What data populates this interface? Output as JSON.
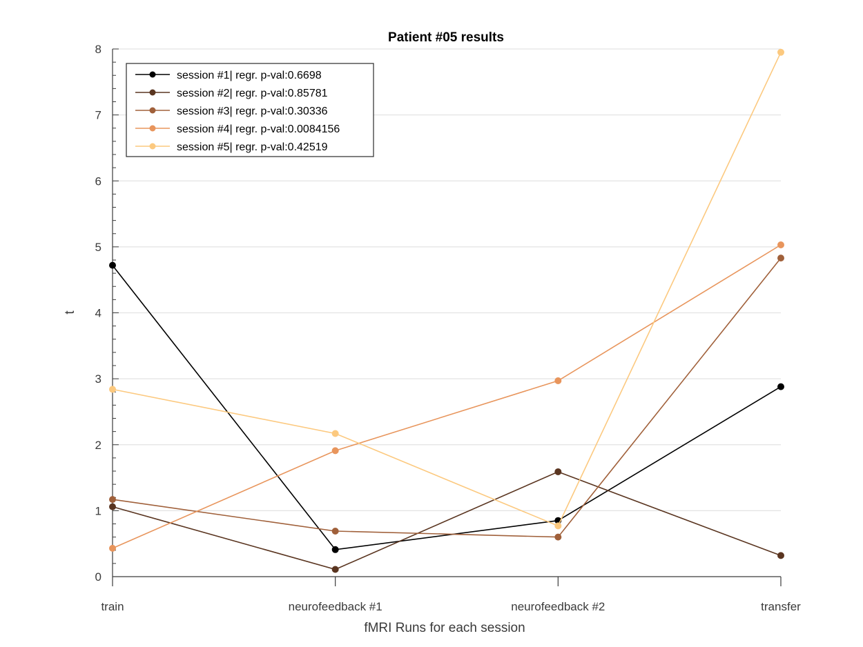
{
  "chart_data": {
    "type": "line",
    "title": "Patient #05 results",
    "xlabel": "fMRI Runs for each session",
    "ylabel": "t",
    "categories": [
      "train",
      "neurofeedback #1",
      "neurofeedback #2",
      "transfer"
    ],
    "ylim": [
      0,
      8
    ],
    "yticks": [
      0,
      1,
      2,
      3,
      4,
      5,
      6,
      7,
      8
    ],
    "grid": "horizontal",
    "legend_position": "top-left",
    "series": [
      {
        "name": "session #1| regr. p-val:0.6698",
        "color": "#000000",
        "values": [
          4.72,
          0.41,
          0.85,
          2.88
        ]
      },
      {
        "name": "session #2| regr. p-val:0.85781",
        "color": "#5a3520",
        "values": [
          1.06,
          0.11,
          1.59,
          0.32
        ]
      },
      {
        "name": "session #3| regr. p-val:0.30336",
        "color": "#a0603a",
        "values": [
          1.17,
          0.69,
          0.6,
          4.83
        ]
      },
      {
        "name": "session #4| regr. p-val:0.0084156",
        "color": "#e8955c",
        "values": [
          0.43,
          1.91,
          2.97,
          5.03
        ]
      },
      {
        "name": "session #5| regr. p-val:0.42519",
        "color": "#fcc97f",
        "values": [
          2.84,
          2.17,
          0.77,
          7.95
        ]
      }
    ]
  }
}
